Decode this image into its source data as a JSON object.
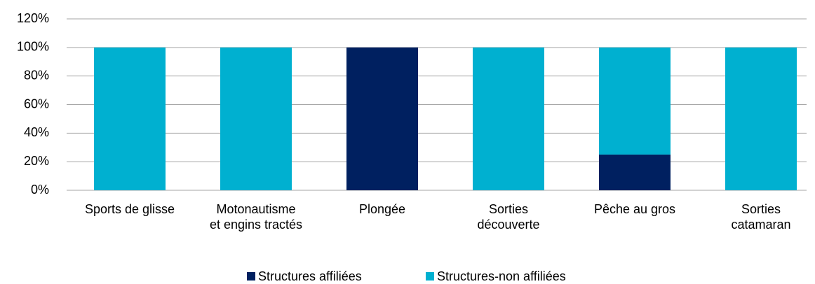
{
  "chart_data": {
    "type": "stacked_bar",
    "categories": [
      "Sports de glisse",
      "Motonautisme\net engins tractés",
      "Plongée",
      "Sorties\ndécouverte",
      "Pêche au gros",
      "Sorties\ncatamaran"
    ],
    "series": [
      {
        "name": "Structures affiliées",
        "color": "#002060",
        "values": [
          0,
          0,
          100,
          0,
          25,
          0
        ]
      },
      {
        "name": "Structures-non affiliées",
        "color": "#00b0d0",
        "values": [
          100,
          100,
          0,
          100,
          75,
          100
        ]
      }
    ],
    "ylim": [
      0,
      120
    ],
    "yticks": [
      {
        "value": 0,
        "label": "0%"
      },
      {
        "value": 20,
        "label": "20%"
      },
      {
        "value": 40,
        "label": "40%"
      },
      {
        "value": 60,
        "label": "60%"
      },
      {
        "value": 80,
        "label": "80%"
      },
      {
        "value": 100,
        "label": "100%"
      },
      {
        "value": 120,
        "label": "120%"
      }
    ],
    "grid": true,
    "legend": "bottom"
  }
}
